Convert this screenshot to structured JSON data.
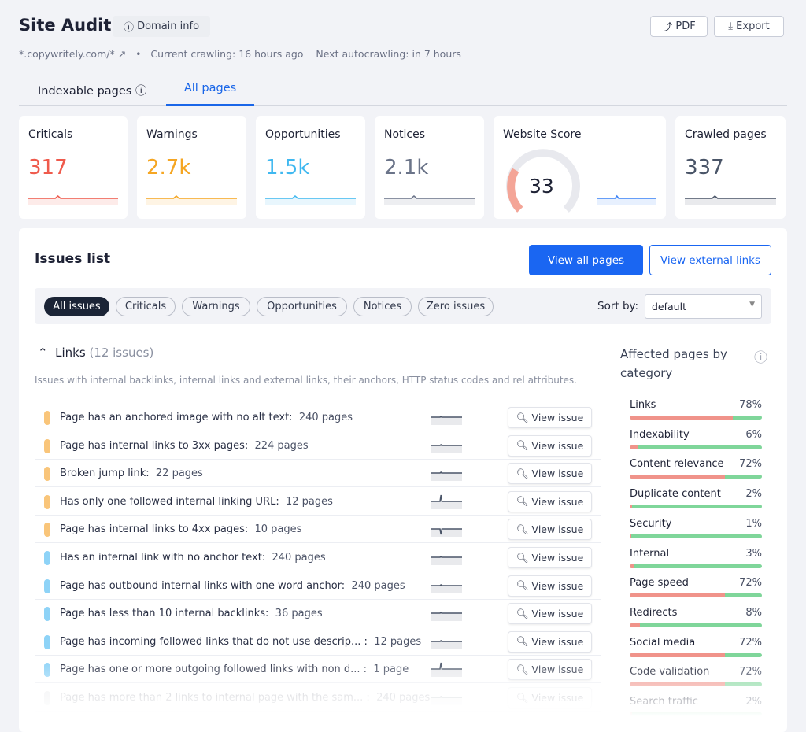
{
  "header": {
    "title": "Site Audit",
    "domain_button": "Domain info",
    "pdf": "PDF",
    "export": "Export",
    "domain": "*.copywritely.com/*",
    "crawling": "Current crawling: 16 hours ago",
    "autocrawling": "Next autocrawling: in 7 hours"
  },
  "tabs": [
    "Indexable pages",
    "All pages"
  ],
  "cards": [
    {
      "label": "Criticals",
      "value": "317",
      "color": "#ef5a4c"
    },
    {
      "label": "Warnings",
      "value": "2.7k",
      "color": "#f5a623"
    },
    {
      "label": "Opportunities",
      "value": "1.5k",
      "color": "#3fb8f0"
    },
    {
      "label": "Notices",
      "value": "2.1k",
      "color": "#6b7489"
    },
    {
      "label": "Website Score",
      "value": "33",
      "color": "#3b82f6"
    },
    {
      "label": "Crawled pages",
      "value": "337",
      "color": "#4a5568"
    }
  ],
  "issues": {
    "title": "Issues list",
    "view_all": "View all pages",
    "view_external": "View external links",
    "filters": [
      "All issues",
      "Criticals",
      "Warnings",
      "Opportunities",
      "Notices",
      "Zero issues"
    ],
    "sort_label": "Sort by:",
    "sort_value": "default",
    "group": {
      "name": "Links",
      "count": "(12 issues)",
      "description": "Issues with internal backlinks, internal links and external links, their anchors, HTTP status codes and rel attributes."
    },
    "view_issue": "View issue",
    "rows": [
      {
        "text": "Page has an anchored image with no alt text:",
        "pages": "240 pages",
        "color": "#f9c57a"
      },
      {
        "text": "Page has internal links to 3xx pages:",
        "pages": "224 pages",
        "color": "#f9c57a"
      },
      {
        "text": "Broken jump link:",
        "pages": "22 pages",
        "color": "#f9c57a"
      },
      {
        "text": "Has only one followed internal linking URL:",
        "pages": "12 pages",
        "color": "#f9c57a"
      },
      {
        "text": "Page has internal links to 4xx pages:",
        "pages": "10 pages",
        "color": "#f9c57a"
      },
      {
        "text": "Has an internal link with no anchor text:",
        "pages": "240 pages",
        "color": "#8ed3f7"
      },
      {
        "text": "Page has outbound internal links with one word anchor:",
        "pages": "240 pages",
        "color": "#8ed3f7"
      },
      {
        "text": "Page has less than 10 internal backlinks:",
        "pages": "36 pages",
        "color": "#8ed3f7"
      },
      {
        "text": "Page has incoming followed links that do not use descrip... :",
        "pages": "12 pages",
        "color": "#8ed3f7"
      },
      {
        "text": "Page has one or more outgoing followed links with non d... :",
        "pages": "1 page",
        "color": "#8ed3f7"
      },
      {
        "text": "Page has more than 2 links to internal page with the sam... :",
        "pages": "240 pages",
        "color": "#c9ccd4"
      }
    ]
  },
  "affected": {
    "title": "Affected pages by category",
    "categories": [
      "Links",
      "Indexability",
      "Content relevance",
      "Duplicate content",
      "Security",
      "Internal",
      "Page speed",
      "Redirects",
      "Social media",
      "Code validation",
      "Search traffic"
    ],
    "values": [
      78,
      6,
      72,
      2,
      1,
      3,
      72,
      8,
      72,
      72,
      2
    ],
    "value_labels": [
      "78%",
      "6%",
      "72%",
      "2%",
      "1%",
      "3%",
      "72%",
      "8%",
      "72%",
      "72%",
      "2%"
    ]
  }
}
